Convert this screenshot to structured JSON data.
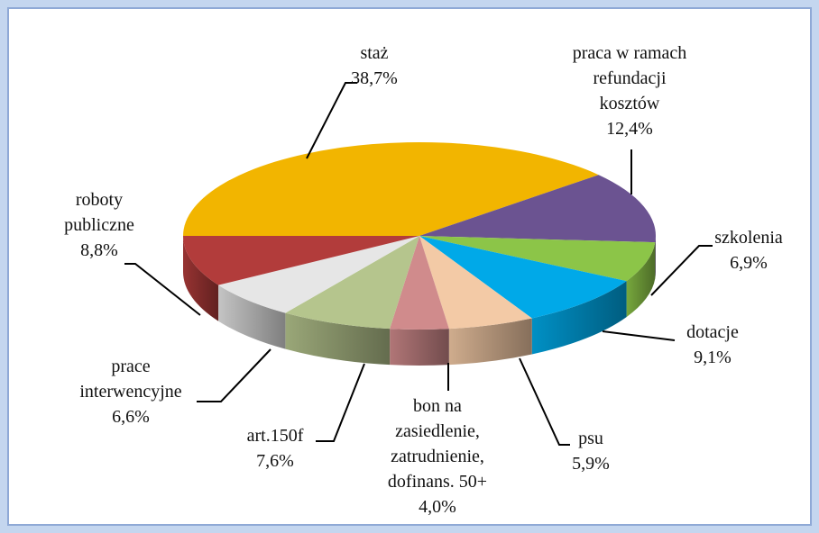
{
  "chart_data": {
    "type": "pie3d",
    "categories": [
      "staż",
      "praca w ramach\nrefundacji\nkosztów",
      "szkolenia",
      "dotacje",
      "psu",
      "bon na\nzasiedlenie,\nzatrudnienie,\ndofinans. 50+",
      "art.150f",
      "prace\ninterwencyjne",
      "roboty\npubliczne"
    ],
    "values": [
      38.7,
      12.4,
      6.9,
      9.1,
      5.9,
      4.0,
      7.6,
      6.6,
      8.8
    ],
    "value_labels": [
      "38,7%",
      "12,4%",
      "6,9%",
      "9,1%",
      "5,9%",
      "4,0%",
      "7,6%",
      "6,6%",
      "8,8%"
    ],
    "colors": [
      "#f2b500",
      "#6b5391",
      "#8cc548",
      "#00a9e8",
      "#f3caa6",
      "#d08b8c",
      "#b5c58d",
      "#e6e6e6",
      "#b23c3b"
    ]
  }
}
